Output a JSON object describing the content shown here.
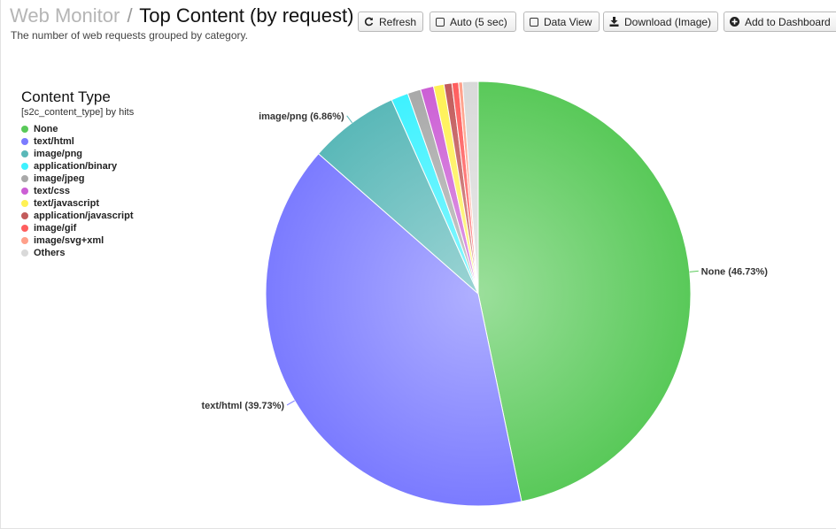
{
  "header": {
    "crumb": "Web Monitor",
    "separator": "/",
    "title": "Top Content (by request)",
    "subtitle": "The number of web requests grouped by category."
  },
  "toolbar": {
    "refresh": {
      "label": "Refresh",
      "icon": "refresh-icon"
    },
    "auto": {
      "label": "Auto (5 sec)",
      "icon": "checkbox-icon"
    },
    "data_view": {
      "label": "Data View",
      "icon": "checkbox-icon"
    },
    "download": {
      "label": "Download (Image)",
      "icon": "download-icon"
    },
    "add_dashboard": {
      "label": "Add to Dashboard",
      "icon": "plus-circle-icon"
    }
  },
  "legend": {
    "title": "Content Type",
    "subtitle": "[s2c_content_type] by hits"
  },
  "chart_data": {
    "type": "pie",
    "slices": [
      {
        "name": "None",
        "value": 46.73,
        "color": "#59c959",
        "label": "None (46.73%)"
      },
      {
        "name": "text/html",
        "value": 39.73,
        "color": "#7b7bff",
        "label": "text/html (39.73%)"
      },
      {
        "name": "image/png",
        "value": 6.86,
        "color": "#5ab8b8",
        "label": "image/png (6.86%)"
      },
      {
        "name": "application/binary",
        "value": 1.3,
        "color": "#3ef2ff",
        "label": ""
      },
      {
        "name": "image/jpeg",
        "value": 1.0,
        "color": "#a9a9a9",
        "label": ""
      },
      {
        "name": "text/css",
        "value": 1.0,
        "color": "#cc5fd5",
        "label": ""
      },
      {
        "name": "text/javascript",
        "value": 0.8,
        "color": "#fff154",
        "label": ""
      },
      {
        "name": "application/javascript",
        "value": 0.6,
        "color": "#c25b5b",
        "label": ""
      },
      {
        "name": "image/gif",
        "value": 0.5,
        "color": "#ff5e5e",
        "label": ""
      },
      {
        "name": "image/svg+xml",
        "value": 0.3,
        "color": "#ffa08a",
        "label": ""
      },
      {
        "name": "Others",
        "value": 1.18,
        "color": "#d9d9d9",
        "label": ""
      }
    ],
    "legend_placement": "left"
  }
}
